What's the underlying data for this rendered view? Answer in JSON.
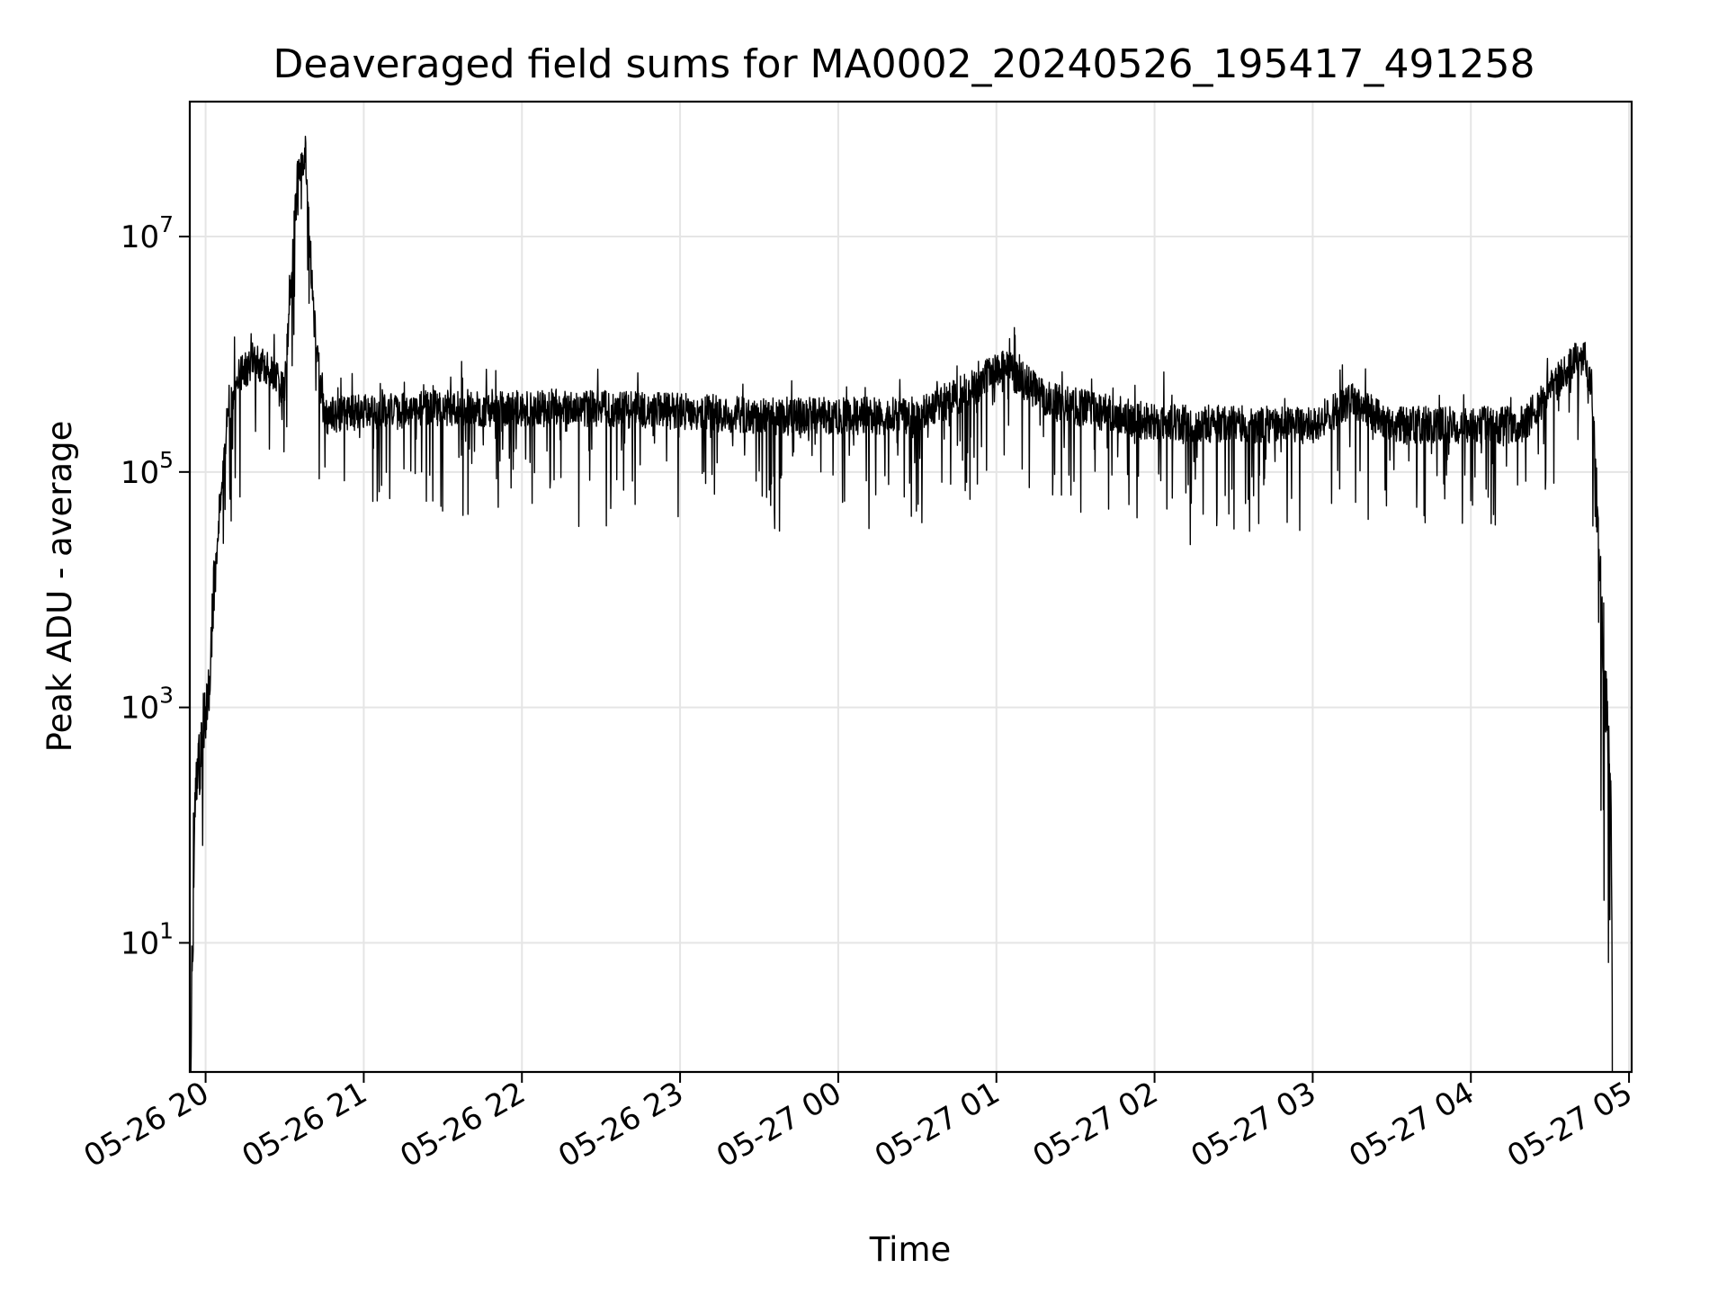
{
  "chart_data": {
    "type": "line",
    "title": "Deaveraged field sums for MA0002_20240526_195417_491258",
    "xlabel": "Time",
    "ylabel": "Peak ADU - average",
    "x_start": "2024-05-26 19:54",
    "x_end": "2024-05-27 04:54",
    "xlim": [
      "2024-05-26 19:54",
      "2024-05-27 05:01"
    ],
    "yscale": "log",
    "ylim": [
      0.8,
      140000000
    ],
    "grid": true,
    "legend": "none",
    "line_color": "#000000",
    "x_ticks": [
      {
        "value": "2024-05-26 20:00",
        "label": "05-26 20"
      },
      {
        "value": "2024-05-26 21:00",
        "label": "05-26 21"
      },
      {
        "value": "2024-05-26 22:00",
        "label": "05-26 22"
      },
      {
        "value": "2024-05-26 23:00",
        "label": "05-26 23"
      },
      {
        "value": "2024-05-27 00:00",
        "label": "05-27 00"
      },
      {
        "value": "2024-05-27 01:00",
        "label": "05-27 01"
      },
      {
        "value": "2024-05-27 02:00",
        "label": "05-27 02"
      },
      {
        "value": "2024-05-27 03:00",
        "label": "05-27 03"
      },
      {
        "value": "2024-05-27 04:00",
        "label": "05-27 04"
      },
      {
        "value": "2024-05-27 05:00",
        "label": "05-27 05"
      }
    ],
    "y_ticks": [
      {
        "value": 10,
        "base": "10",
        "exp": "1"
      },
      {
        "value": 1000,
        "base": "10",
        "exp": "3"
      },
      {
        "value": 100000,
        "base": "10",
        "exp": "5"
      },
      {
        "value": 10000000,
        "base": "10",
        "exp": "7"
      }
    ],
    "envelope": [
      {
        "t": "2024-05-26 19:54",
        "y": 0.5
      },
      {
        "t": "2024-05-26 19:56",
        "y": 150
      },
      {
        "t": "2024-05-26 19:58",
        "y": 400
      },
      {
        "t": "2024-05-26 20:00",
        "y": 1000
      },
      {
        "t": "2024-05-26 20:02",
        "y": 3000
      },
      {
        "t": "2024-05-26 20:05",
        "y": 40000
      },
      {
        "t": "2024-05-26 20:08",
        "y": 250000
      },
      {
        "t": "2024-05-26 20:12",
        "y": 600000
      },
      {
        "t": "2024-05-26 20:18",
        "y": 900000
      },
      {
        "t": "2024-05-26 20:24",
        "y": 700000
      },
      {
        "t": "2024-05-26 20:30",
        "y": 500000
      },
      {
        "t": "2024-05-26 20:35",
        "y": 40000000
      },
      {
        "t": "2024-05-26 20:38",
        "y": 50000000
      },
      {
        "t": "2024-05-26 20:41",
        "y": 2000000
      },
      {
        "t": "2024-05-26 20:45",
        "y": 300000
      },
      {
        "t": "2024-05-26 21:30",
        "y": 350000
      },
      {
        "t": "2024-05-26 22:30",
        "y": 350000
      },
      {
        "t": "2024-05-26 23:30",
        "y": 300000
      },
      {
        "t": "2024-05-27 00:30",
        "y": 300000
      },
      {
        "t": "2024-05-27 00:50",
        "y": 500000
      },
      {
        "t": "2024-05-27 01:03",
        "y": 800000
      },
      {
        "t": "2024-05-27 01:20",
        "y": 400000
      },
      {
        "t": "2024-05-27 02:00",
        "y": 260000
      },
      {
        "t": "2024-05-27 03:00",
        "y": 250000
      },
      {
        "t": "2024-05-27 03:15",
        "y": 400000
      },
      {
        "t": "2024-05-27 03:30",
        "y": 250000
      },
      {
        "t": "2024-05-27 04:20",
        "y": 250000
      },
      {
        "t": "2024-05-27 04:30",
        "y": 500000
      },
      {
        "t": "2024-05-27 04:40",
        "y": 900000
      },
      {
        "t": "2024-05-27 04:43",
        "y": 1000000
      },
      {
        "t": "2024-05-27 04:46",
        "y": 500000
      },
      {
        "t": "2024-05-27 04:48",
        "y": 50000
      },
      {
        "t": "2024-05-27 04:50",
        "y": 3000
      },
      {
        "t": "2024-05-27 04:52",
        "y": 700
      },
      {
        "t": "2024-05-27 04:53",
        "y": 300
      },
      {
        "t": "2024-05-27 04:54",
        "y": 0.5
      }
    ]
  }
}
